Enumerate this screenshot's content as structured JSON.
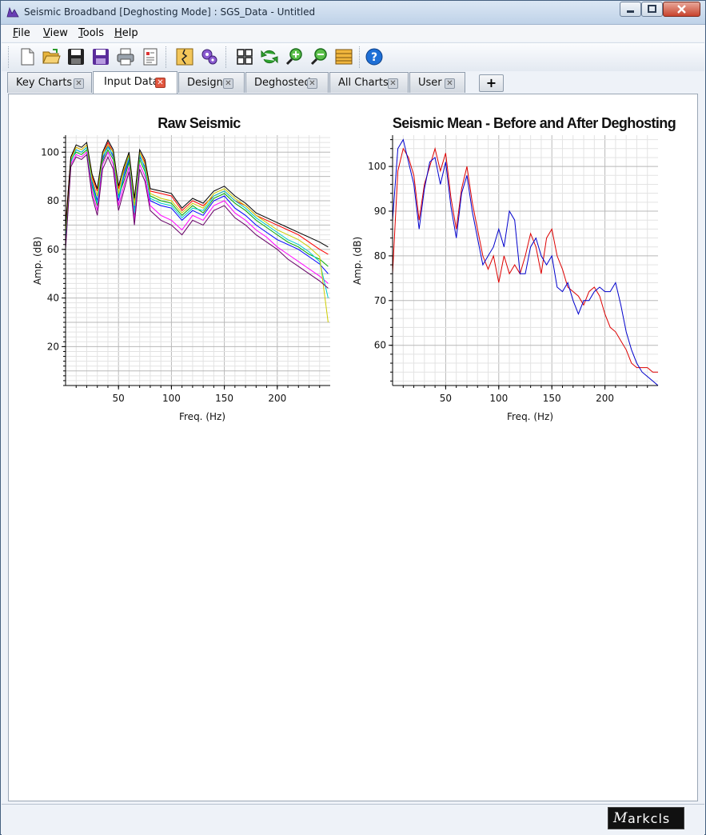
{
  "window": {
    "title": "Seismic Broadband [Deghosting Mode] : SGS_Data - Untitled",
    "status_logo_text": "arkcls",
    "status_logo_mark": "M"
  },
  "menu": {
    "items": [
      {
        "first": "F",
        "rest": "ile"
      },
      {
        "first": "V",
        "rest": "iew"
      },
      {
        "first": "T",
        "rest": "ools"
      },
      {
        "first": "H",
        "rest": "elp"
      }
    ]
  },
  "toolbar": {
    "icons": [
      "new-document-icon",
      "open-folder-icon",
      "save-icon",
      "save-as-icon",
      "print-icon",
      "report-icon",
      "seismic-trace-icon",
      "settings-gears-icon",
      "grid-layout-icon",
      "refresh-icon",
      "zoom-in-icon",
      "zoom-out-icon",
      "layers-icon",
      "help-icon"
    ]
  },
  "tabs": [
    {
      "label": "Key Charts",
      "active": false
    },
    {
      "label": "Input Data",
      "active": true
    },
    {
      "label": "Design",
      "active": false
    },
    {
      "label": "Deghosted",
      "active": false
    },
    {
      "label": "All Charts",
      "active": false
    },
    {
      "label": "User",
      "active": false
    }
  ],
  "add_tab_label": "+",
  "chart_data": [
    {
      "type": "line",
      "title": "Raw Seismic",
      "xlabel": "Freq. (Hz)",
      "ylabel": "Amp. (dB)",
      "xlim": [
        0,
        250
      ],
      "ylim": [
        4,
        107
      ],
      "xticks": [
        50,
        100,
        150,
        200
      ],
      "yticks": [
        20,
        40,
        60,
        80,
        100
      ],
      "grid": true,
      "note_series": "many overlapping multicolored traces",
      "series": [
        {
          "color": "#ff0000",
          "x": [
            0,
            5,
            10,
            15,
            20,
            25,
            30,
            35,
            40,
            45,
            50,
            55,
            60,
            65,
            70,
            75,
            80,
            90,
            100,
            110,
            120,
            130,
            140,
            150,
            160,
            170,
            180,
            190,
            200,
            210,
            220,
            230,
            240,
            248
          ],
          "y": [
            70,
            98,
            102,
            101,
            103,
            90,
            84,
            99,
            104,
            100,
            85,
            92,
            99,
            80,
            100,
            96,
            84,
            83,
            82,
            76,
            80,
            78,
            82,
            84,
            80,
            78,
            74,
            72,
            70,
            68,
            66,
            63,
            60,
            58
          ]
        },
        {
          "color": "#0000ff",
          "x": [
            0,
            5,
            10,
            15,
            20,
            25,
            30,
            35,
            40,
            45,
            50,
            55,
            60,
            65,
            70,
            75,
            80,
            90,
            100,
            110,
            120,
            130,
            140,
            150,
            160,
            170,
            180,
            190,
            200,
            210,
            220,
            230,
            240,
            248
          ],
          "y": [
            66,
            96,
            101,
            100,
            102,
            88,
            80,
            97,
            103,
            98,
            80,
            90,
            97,
            76,
            98,
            94,
            80,
            78,
            77,
            72,
            76,
            74,
            80,
            82,
            77,
            74,
            70,
            67,
            64,
            62,
            60,
            57,
            54,
            50
          ]
        },
        {
          "color": "#00aa00",
          "x": [
            0,
            5,
            10,
            15,
            20,
            25,
            30,
            35,
            40,
            45,
            50,
            55,
            60,
            65,
            70,
            75,
            80,
            90,
            100,
            110,
            120,
            130,
            140,
            150,
            160,
            170,
            180,
            190,
            200,
            210,
            220,
            230,
            240,
            248
          ],
          "y": [
            68,
            97,
            100,
            99,
            101,
            86,
            78,
            96,
            101,
            97,
            82,
            88,
            96,
            74,
            97,
            92,
            82,
            80,
            79,
            74,
            78,
            75,
            81,
            83,
            79,
            76,
            72,
            69,
            66,
            63,
            61,
            58,
            56,
            53
          ]
        },
        {
          "color": "#ff00ff",
          "x": [
            0,
            5,
            10,
            15,
            20,
            25,
            30,
            35,
            40,
            45,
            50,
            55,
            60,
            65,
            70,
            75,
            80,
            90,
            100,
            110,
            120,
            130,
            140,
            150,
            160,
            170,
            180,
            190,
            200,
            210,
            220,
            230,
            240,
            248
          ],
          "y": [
            62,
            95,
            99,
            98,
            100,
            84,
            76,
            95,
            100,
            95,
            78,
            86,
            94,
            72,
            95,
            90,
            78,
            74,
            72,
            68,
            74,
            72,
            78,
            80,
            75,
            72,
            68,
            65,
            61,
            58,
            55,
            52,
            49,
            46
          ]
        },
        {
          "color": "#00cccc",
          "x": [
            0,
            5,
            10,
            15,
            20,
            25,
            30,
            35,
            40,
            45,
            50,
            55,
            60,
            65,
            70,
            75,
            80,
            90,
            100,
            110,
            120,
            130,
            140,
            150,
            160,
            170,
            180,
            190,
            200,
            210,
            220,
            230,
            240,
            248
          ],
          "y": [
            64,
            96,
            101,
            100,
            102,
            87,
            79,
            98,
            102,
            99,
            81,
            91,
            98,
            75,
            99,
            93,
            81,
            79,
            78,
            73,
            77,
            76,
            82,
            84,
            80,
            77,
            73,
            70,
            67,
            64,
            62,
            59,
            55,
            40
          ]
        },
        {
          "color": "#cccc00",
          "x": [
            0,
            5,
            10,
            15,
            20,
            25,
            30,
            35,
            40,
            45,
            50,
            55,
            60,
            65,
            70,
            75,
            80,
            90,
            100,
            110,
            120,
            130,
            140,
            150,
            160,
            170,
            180,
            190,
            200,
            210,
            220,
            230,
            240,
            248
          ],
          "y": [
            67,
            97,
            102,
            101,
            103,
            89,
            82,
            99,
            103,
            100,
            83,
            93,
            99,
            78,
            100,
            95,
            83,
            81,
            80,
            75,
            79,
            77,
            83,
            85,
            81,
            78,
            74,
            71,
            68,
            66,
            64,
            61,
            57,
            30
          ]
        },
        {
          "color": "#660066",
          "x": [
            0,
            5,
            10,
            15,
            20,
            25,
            30,
            35,
            40,
            45,
            50,
            55,
            60,
            65,
            70,
            75,
            80,
            90,
            100,
            110,
            120,
            130,
            140,
            150,
            160,
            170,
            180,
            190,
            200,
            210,
            220,
            230,
            240,
            248
          ],
          "y": [
            60,
            94,
            98,
            97,
            99,
            82,
            74,
            93,
            98,
            93,
            76,
            84,
            92,
            70,
            93,
            88,
            76,
            72,
            70,
            66,
            72,
            70,
            76,
            78,
            73,
            70,
            66,
            63,
            60,
            56,
            53,
            50,
            47,
            44
          ]
        },
        {
          "color": "#000000",
          "x": [
            0,
            5,
            10,
            15,
            20,
            25,
            30,
            35,
            40,
            45,
            50,
            55,
            60,
            65,
            70,
            75,
            80,
            90,
            100,
            110,
            120,
            130,
            140,
            150,
            160,
            170,
            180,
            190,
            200,
            210,
            220,
            230,
            240,
            248
          ],
          "y": [
            69,
            98,
            103,
            102,
            104,
            91,
            85,
            100,
            105,
            101,
            86,
            94,
            100,
            81,
            101,
            97,
            85,
            84,
            83,
            77,
            81,
            79,
            84,
            86,
            82,
            79,
            75,
            73,
            71,
            69,
            67,
            65,
            63,
            61
          ]
        }
      ]
    },
    {
      "type": "line",
      "title": "Seismic Mean - Before and After Deghosting",
      "xlabel": "Freq. (Hz)",
      "ylabel": "Amp. (dB)",
      "xlim": [
        0,
        250
      ],
      "ylim": [
        51,
        107
      ],
      "xticks": [
        50,
        100,
        150,
        200
      ],
      "yticks": [
        60,
        70,
        80,
        90,
        100
      ],
      "grid": true,
      "series": [
        {
          "color": "#dd0000",
          "x": [
            0,
            5,
            10,
            15,
            20,
            25,
            30,
            35,
            40,
            45,
            50,
            55,
            60,
            65,
            70,
            75,
            80,
            85,
            90,
            95,
            100,
            105,
            110,
            115,
            120,
            125,
            130,
            135,
            140,
            145,
            150,
            155,
            160,
            165,
            170,
            175,
            180,
            185,
            190,
            195,
            200,
            205,
            210,
            215,
            220,
            225,
            230,
            235,
            240,
            245,
            250
          ],
          "y": [
            76,
            99,
            104,
            102,
            98,
            88,
            96,
            100,
            104,
            99,
            103,
            93,
            86,
            95,
            100,
            92,
            86,
            80,
            77,
            80,
            74,
            80,
            76,
            78,
            76,
            80,
            85,
            82,
            76,
            84,
            86,
            80,
            77,
            73,
            72,
            71,
            69,
            72,
            73,
            71,
            67,
            64,
            63,
            61,
            59,
            56,
            55,
            55,
            55,
            54,
            54
          ]
        },
        {
          "color": "#0000cc",
          "x": [
            0,
            5,
            10,
            15,
            20,
            25,
            30,
            35,
            40,
            45,
            50,
            55,
            60,
            65,
            70,
            75,
            80,
            85,
            90,
            95,
            100,
            105,
            110,
            115,
            120,
            125,
            130,
            135,
            140,
            145,
            150,
            155,
            160,
            165,
            170,
            175,
            180,
            185,
            190,
            195,
            200,
            205,
            210,
            215,
            220,
            225,
            230,
            235,
            240,
            245,
            250
          ],
          "y": [
            88,
            104,
            106,
            101,
            96,
            86,
            95,
            101,
            102,
            96,
            101,
            91,
            84,
            94,
            98,
            90,
            84,
            78,
            80,
            82,
            86,
            82,
            90,
            88,
            76,
            76,
            82,
            84,
            80,
            78,
            80,
            73,
            72,
            74,
            70,
            67,
            70,
            70,
            72,
            73,
            72,
            72,
            74,
            69,
            63,
            59,
            56,
            54,
            53,
            52,
            51
          ]
        }
      ]
    }
  ]
}
